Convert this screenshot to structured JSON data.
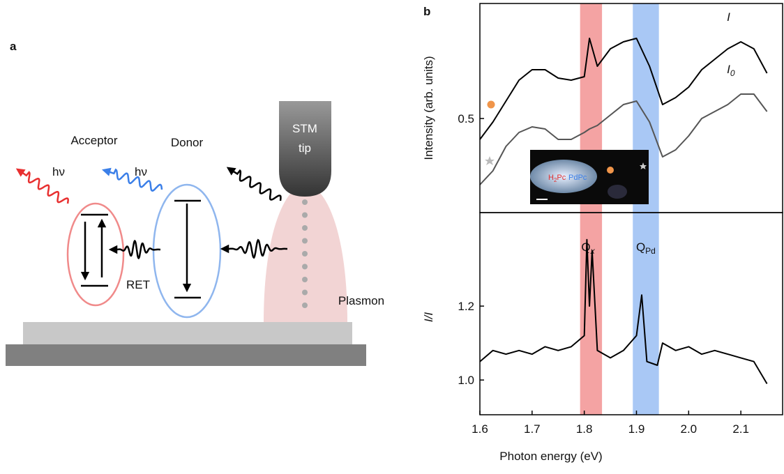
{
  "panel_a": {
    "label": "a",
    "acceptor": "Acceptor",
    "donor": "Donor",
    "photon_acceptor": "hν",
    "photon_donor": "hν",
    "tip_line1": "STM",
    "tip_line2": "tip",
    "transfer": "RET",
    "plasmon": "Plasmon"
  },
  "panel_b": {
    "label": "b",
    "x_label": "Photon energy (eV)",
    "inset": {
      "acceptor": "H",
      "acceptor_sub": "2",
      "acceptor_rest": "Pc",
      "donor": "PdPc"
    }
  },
  "chart_data": [
    {
      "type": "line",
      "y_label": "Intensity (arb. units)",
      "xlim": [
        1.6,
        2.18
      ],
      "ylim": [
        0.365,
        0.665
      ],
      "yticks": [
        0.5
      ],
      "x": [
        1.6,
        1.625,
        1.65,
        1.675,
        1.7,
        1.725,
        1.75,
        1.775,
        1.8,
        1.81,
        1.825,
        1.85,
        1.875,
        1.9,
        1.925,
        1.95,
        1.975,
        2.0,
        2.025,
        2.05,
        2.075,
        2.1,
        2.125,
        2.15
      ],
      "series": [
        {
          "name": "I",
          "color": "#000000",
          "values": [
            0.47,
            0.495,
            0.525,
            0.555,
            0.57,
            0.57,
            0.558,
            0.555,
            0.56,
            0.615,
            0.575,
            0.6,
            0.61,
            0.615,
            0.575,
            0.52,
            0.53,
            0.545,
            0.57,
            0.585,
            0.6,
            0.61,
            0.6,
            0.565
          ]
        },
        {
          "name": "I",
          "subscript": "0",
          "color": "#555555",
          "values": [
            0.405,
            0.425,
            0.46,
            0.48,
            0.488,
            0.485,
            0.47,
            0.47,
            0.48,
            0.485,
            0.49,
            0.505,
            0.52,
            0.525,
            0.495,
            0.445,
            0.455,
            0.475,
            0.5,
            0.51,
            0.52,
            0.535,
            0.535,
            0.51
          ]
        }
      ]
    },
    {
      "type": "line",
      "y_label": "I/I",
      "xlim": [
        1.6,
        2.18
      ],
      "ylim": [
        0.906,
        1.453
      ],
      "yticks": [
        {
          "value": 1.0,
          "label": "1.0"
        },
        1.2
      ],
      "xticks": [
        1.6,
        1.7,
        1.8,
        1.9,
        {
          "value": 2.0,
          "label": "2.0"
        },
        2.1
      ],
      "x": [
        1.6,
        1.625,
        1.65,
        1.675,
        1.7,
        1.725,
        1.75,
        1.775,
        1.8,
        1.805,
        1.81,
        1.815,
        1.825,
        1.85,
        1.875,
        1.9,
        1.91,
        1.92,
        1.94,
        1.95,
        1.975,
        2.0,
        2.025,
        2.05,
        2.075,
        2.1,
        2.125,
        2.15
      ],
      "series": [
        {
          "name": "I/I",
          "color": "#000000",
          "values": [
            1.05,
            1.08,
            1.07,
            1.08,
            1.07,
            1.09,
            1.08,
            1.09,
            1.12,
            1.38,
            1.2,
            1.35,
            1.08,
            1.06,
            1.08,
            1.12,
            1.23,
            1.05,
            1.04,
            1.1,
            1.08,
            1.09,
            1.07,
            1.08,
            1.07,
            1.06,
            1.05,
            0.99
          ]
        }
      ],
      "bands": [
        {
          "label": "Q",
          "sub": "x",
          "range": [
            1.792,
            1.834
          ],
          "color": "#f4a3a3"
        },
        {
          "label": "Q",
          "sub": "Pd",
          "range": [
            1.893,
            1.943
          ],
          "color": "#a9c8f5"
        }
      ]
    }
  ]
}
